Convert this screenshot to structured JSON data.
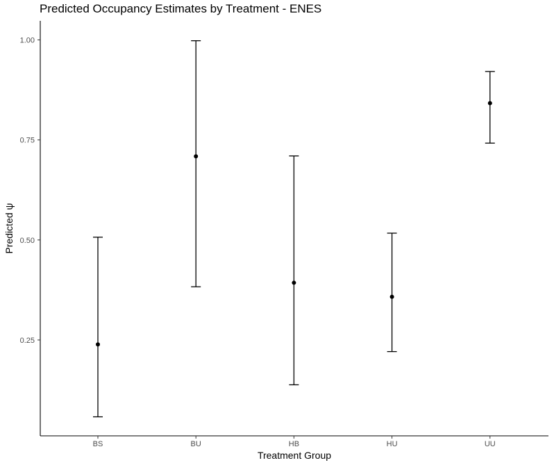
{
  "chart_data": {
    "type": "scatter",
    "title": "Predicted Occupancy Estimates by Treatment - ENES",
    "xlabel": "Treatment Group",
    "ylabel": "Predicted ψ",
    "categories": [
      "BS",
      "BU",
      "HB",
      "HU",
      "UU"
    ],
    "values": [
      0.239,
      0.709,
      0.393,
      0.358,
      0.842
    ],
    "lower": [
      0.058,
      0.383,
      0.138,
      0.221,
      0.742
    ],
    "upper": [
      0.507,
      0.998,
      0.71,
      0.517,
      0.921
    ],
    "ylim": [
      0.0,
      1.0
    ],
    "yticks": [
      0.25,
      0.5,
      0.75,
      1.0
    ],
    "ytick_labels": [
      "0.25",
      "0.50",
      "0.75",
      "1.00"
    ],
    "grid": false,
    "legend": "none",
    "colors": {
      "points": "#000000",
      "errorbars": "#000000",
      "axis": "#000000",
      "ticklabels": "#4d4d4d"
    }
  }
}
